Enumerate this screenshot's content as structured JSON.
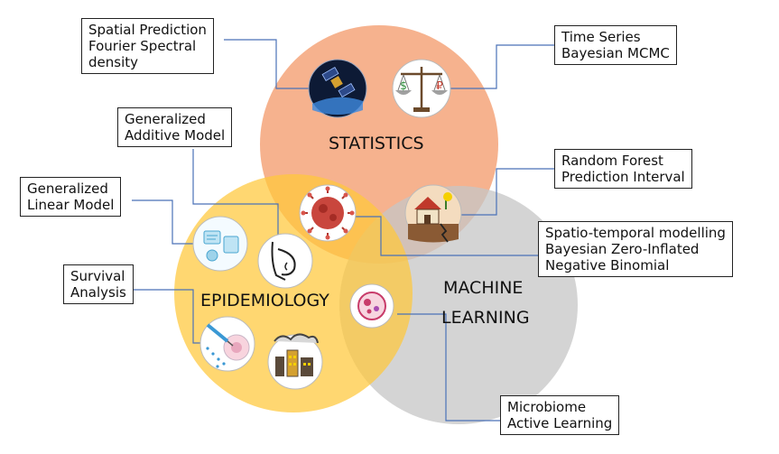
{
  "circles": {
    "statistics": {
      "label": "STATISTICS",
      "color": "#f4a57a"
    },
    "epidemiology": {
      "label": "EPIDEMIOLOGY",
      "color": "#ffc83a"
    },
    "machine_learning": {
      "label_line1": "MACHINE",
      "label_line2": "LEARNING",
      "color": "#c8c8c8"
    }
  },
  "boxes": {
    "spatial": [
      "Spatial Prediction",
      "Fourier Spectral",
      "density"
    ],
    "timeseries": [
      "Time Series",
      "Bayesian MCMC"
    ],
    "gam": [
      "Generalized",
      "Additive Model"
    ],
    "glm": [
      "Generalized",
      "Linear Model"
    ],
    "survival": [
      "Survival",
      "Analysis"
    ],
    "randomforest": [
      "Random Forest",
      "Prediction Interval"
    ],
    "spatiotemporal": [
      "Spatio-temporal modelling",
      "Bayesian Zero-Inflated",
      "Negative Binomial"
    ],
    "microbiome": [
      "Microbiome",
      "Active Learning"
    ]
  },
  "icons": {
    "satellite": "satellite-icon",
    "scale": "balance-scale-icon",
    "virus": "virus-icon",
    "house": "earthquake-house-icon",
    "lab": "lab-data-icon",
    "pregnancy": "pregnancy-icon",
    "cells": "cell-petri-icon",
    "syringe": "syringe-icon",
    "factory": "factory-pollution-icon"
  }
}
